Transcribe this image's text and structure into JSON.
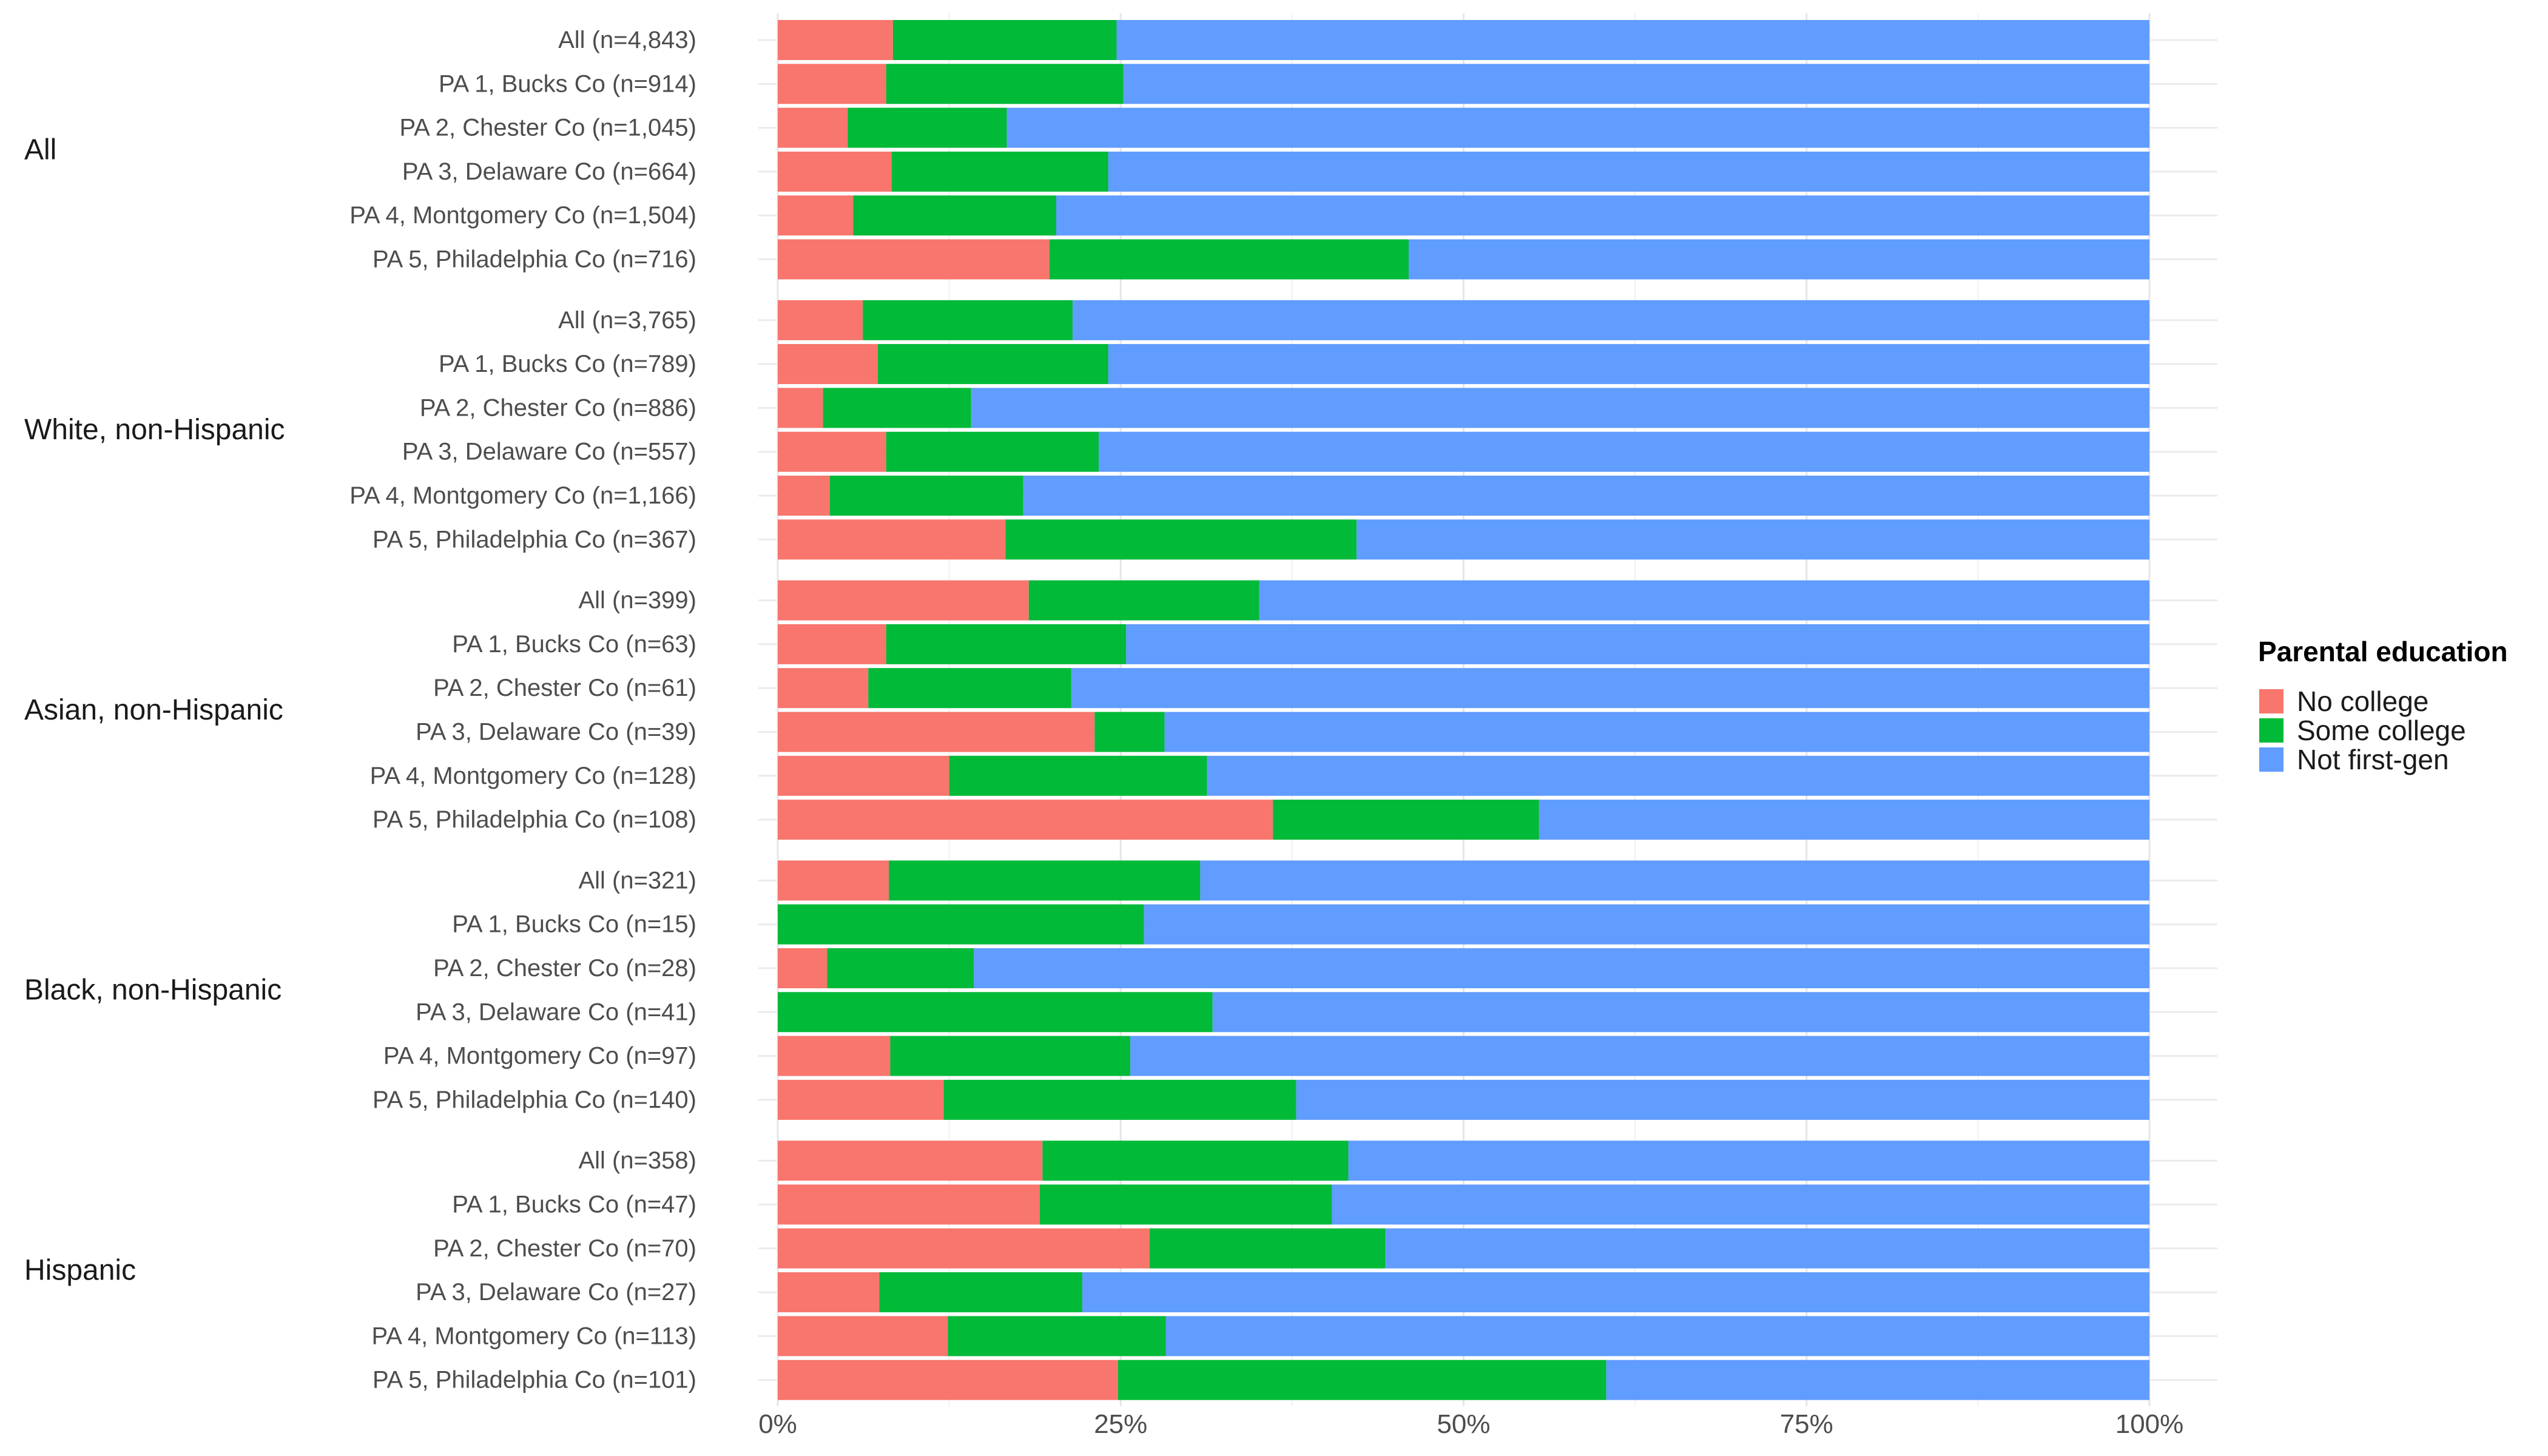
{
  "chart_data": {
    "type": "bar",
    "orientation": "horizontal",
    "stacked": true,
    "title": "",
    "xlabel": "",
    "ylabel": "",
    "xlim": [
      0,
      100
    ],
    "x_ticks": [
      "0%",
      "25%",
      "50%",
      "75%",
      "100%"
    ],
    "x_tick_values": [
      0,
      25,
      50,
      75,
      100
    ],
    "grid": true,
    "legend_placement": "right",
    "legend": {
      "title": "Parental education",
      "entries": [
        {
          "name": "No college",
          "color": "#F8766D"
        },
        {
          "name": "Some college",
          "color": "#00BA38"
        },
        {
          "name": "Not first-gen",
          "color": "#619CFF"
        }
      ]
    },
    "series_colors": [
      "#F8766D",
      "#00BA38",
      "#619CFF"
    ],
    "groups": [
      {
        "name": "All",
        "rows": [
          {
            "label": "All (n=4,843)",
            "values": [
              8.4,
              16.3,
              75.3
            ]
          },
          {
            "label": "PA 1, Bucks Co (n=914)",
            "values": [
              7.9,
              17.3,
              74.8
            ]
          },
          {
            "label": "PA 2, Chester Co (n=1,045)",
            "values": [
              5.1,
              11.6,
              83.3
            ]
          },
          {
            "label": "PA 3, Delaware Co (n=664)",
            "values": [
              8.3,
              15.8,
              75.9
            ]
          },
          {
            "label": "PA 4, Montgomery Co (n=1,504)",
            "values": [
              5.5,
              14.8,
              79.7
            ]
          },
          {
            "label": "PA 5, Philadelphia Co (n=716)",
            "values": [
              19.8,
              26.2,
              54.0
            ]
          }
        ]
      },
      {
        "name": "White, non-Hispanic",
        "rows": [
          {
            "label": "All (n=3,765)",
            "values": [
              6.2,
              15.3,
              78.5
            ]
          },
          {
            "label": "PA 1, Bucks Co (n=789)",
            "values": [
              7.3,
              16.8,
              75.9
            ]
          },
          {
            "label": "PA 2, Chester Co (n=886)",
            "values": [
              3.3,
              10.8,
              85.9
            ]
          },
          {
            "label": "PA 3, Delaware Co (n=557)",
            "values": [
              7.9,
              15.5,
              76.6
            ]
          },
          {
            "label": "PA 4, Montgomery Co (n=1,166)",
            "values": [
              3.8,
              14.1,
              82.1
            ]
          },
          {
            "label": "PA 5, Philadelphia Co (n=367)",
            "values": [
              16.6,
              25.6,
              57.8
            ]
          }
        ]
      },
      {
        "name": "Asian, non-Hispanic",
        "rows": [
          {
            "label": "All (n=399)",
            "values": [
              18.3,
              16.8,
              64.9
            ]
          },
          {
            "label": "PA 1, Bucks Co (n=63)",
            "values": [
              7.9,
              17.5,
              74.6
            ]
          },
          {
            "label": "PA 2, Chester Co (n=61)",
            "values": [
              6.6,
              14.8,
              78.6
            ]
          },
          {
            "label": "PA 3, Delaware Co (n=39)",
            "values": [
              23.1,
              5.1,
              71.8
            ]
          },
          {
            "label": "PA 4, Montgomery Co (n=128)",
            "values": [
              12.5,
              18.8,
              68.7
            ]
          },
          {
            "label": "PA 5, Philadelphia Co (n=108)",
            "values": [
              36.1,
              19.4,
              44.5
            ]
          }
        ]
      },
      {
        "name": "Black, non-Hispanic",
        "rows": [
          {
            "label": "All (n=321)",
            "values": [
              8.1,
              22.7,
              69.2
            ]
          },
          {
            "label": "PA 1, Bucks Co (n=15)",
            "values": [
              0,
              26.7,
              73.3
            ]
          },
          {
            "label": "PA 2, Chester Co (n=28)",
            "values": [
              3.6,
              10.7,
              85.7
            ]
          },
          {
            "label": "PA 3, Delaware Co (n=41)",
            "values": [
              0,
              31.7,
              68.3
            ]
          },
          {
            "label": "PA 4, Montgomery Co (n=97)",
            "values": [
              8.2,
              17.5,
              74.3
            ]
          },
          {
            "label": "PA 5, Philadelphia Co (n=140)",
            "values": [
              12.1,
              25.7,
              62.2
            ]
          }
        ]
      },
      {
        "name": "Hispanic",
        "rows": [
          {
            "label": "All (n=358)",
            "values": [
              19.3,
              22.3,
              58.4
            ]
          },
          {
            "label": "PA 1, Bucks Co (n=47)",
            "values": [
              19.1,
              21.3,
              59.6
            ]
          },
          {
            "label": "PA 2, Chester Co (n=70)",
            "values": [
              27.1,
              17.2,
              55.7
            ]
          },
          {
            "label": "PA 3, Delaware Co (n=27)",
            "values": [
              7.4,
              14.8,
              77.8
            ]
          },
          {
            "label": "PA 4, Montgomery Co (n=113)",
            "values": [
              12.4,
              15.9,
              71.7
            ]
          },
          {
            "label": "PA 5, Philadelphia Co (n=101)",
            "values": [
              24.8,
              35.6,
              39.6
            ]
          }
        ]
      }
    ]
  }
}
